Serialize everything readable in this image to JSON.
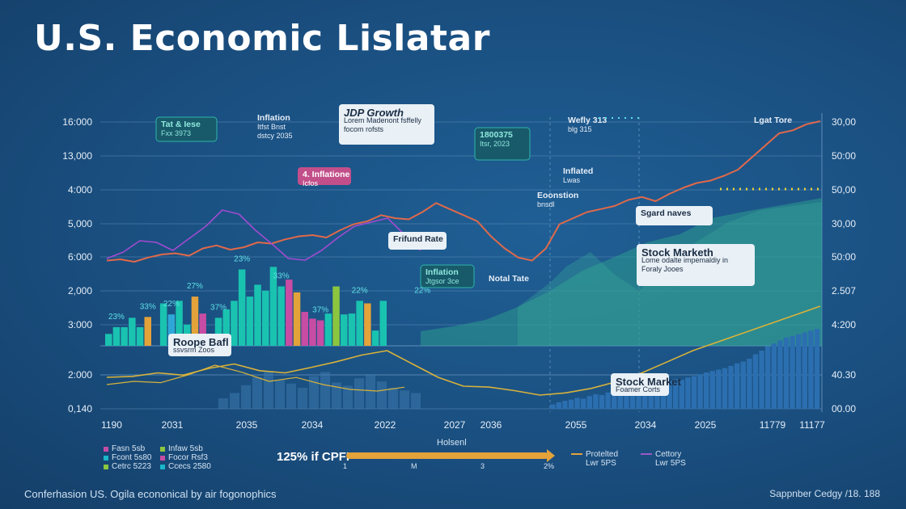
{
  "title": "U.S. Economic Lislatar",
  "footer": {
    "left": "Conferhasion US. Ogila econonical by air fogonophics",
    "right": "Sappnber Cedgy /18. 188"
  },
  "slider": {
    "header": "Holsenl",
    "label": "125% if CPFI",
    "ticks": [
      "1",
      "M",
      "3",
      "2%"
    ]
  },
  "legend": {
    "col1": [
      {
        "label": "Fasn 5sb",
        "color": "#c74ca3"
      },
      {
        "label": "Fcont 5s80",
        "color": "#19b7c9"
      },
      {
        "label": "Cetrc 5223",
        "color": "#8cc63f"
      }
    ],
    "col2": [
      {
        "label": "Infaw 5sb",
        "color": "#8cc63f"
      },
      {
        "label": "Focor Rsf3",
        "color": "#c74ca3"
      },
      {
        "label": "Ccecs 2580",
        "color": "#19b7c9"
      }
    ],
    "lines": [
      {
        "label": "Protelted",
        "sub": "Lwr 5PS",
        "color": "#e3a23a"
      },
      {
        "label": "Cettory",
        "sub": "Lwr 5PS",
        "color": "#9b59c9"
      }
    ]
  },
  "colors": {
    "teal": "#19c3b0",
    "cyan": "#2ea7d8",
    "orange": "#e3a23a",
    "magenta": "#c74ca3",
    "green": "#8cc63f",
    "line_red": "#e0694a",
    "line_yellow": "#d8b23a",
    "line_purple": "#a14bd0",
    "area": "#2c9a8e",
    "dark_bar": "#2b6fb0"
  },
  "chart_data": {
    "type": "bar",
    "y_left_ticks": [
      "16:000",
      "13,000",
      "4:000",
      "5,000",
      "6:000",
      "2,000",
      "3:000",
      "2:000",
      "0,140"
    ],
    "y_right_ticks": [
      "30,00",
      "50:00",
      "50,00",
      "30,00",
      "50:00",
      "2.507",
      "4:200",
      "40.30",
      "00.00"
    ],
    "x_ticks": [
      "1190",
      "2031",
      "2035",
      "2034",
      "2022",
      "2027",
      "2036",
      "2055",
      "2034",
      "2025",
      "11779",
      "11177"
    ],
    "bars_upper": [
      {
        "v": 14,
        "c": "teal"
      },
      {
        "v": 22,
        "c": "teal"
      },
      {
        "v": 22,
        "c": "teal"
      },
      {
        "v": 33,
        "c": "teal"
      },
      {
        "v": 22,
        "c": "teal"
      },
      {
        "v": 34,
        "c": "orange"
      },
      {
        "v": 0,
        "c": "teal"
      },
      {
        "v": 50,
        "c": "teal"
      },
      {
        "v": 37,
        "c": "cyan"
      },
      {
        "v": 53,
        "c": "teal"
      },
      {
        "v": 25,
        "c": "teal"
      },
      {
        "v": 58,
        "c": "orange"
      },
      {
        "v": 38,
        "c": "magenta"
      },
      {
        "v": 0,
        "c": "teal"
      },
      {
        "v": 33,
        "c": "teal"
      },
      {
        "v": 43,
        "c": "teal"
      },
      {
        "v": 53,
        "c": "teal"
      },
      {
        "v": 90,
        "c": "teal"
      },
      {
        "v": 58,
        "c": "teal"
      },
      {
        "v": 72,
        "c": "teal"
      },
      {
        "v": 65,
        "c": "teal"
      },
      {
        "v": 93,
        "c": "teal"
      },
      {
        "v": 70,
        "c": "teal"
      },
      {
        "v": 78,
        "c": "magenta"
      },
      {
        "v": 63,
        "c": "orange"
      },
      {
        "v": 40,
        "c": "magenta"
      },
      {
        "v": 32,
        "c": "magenta"
      },
      {
        "v": 30,
        "c": "magenta"
      },
      {
        "v": 38,
        "c": "teal"
      },
      {
        "v": 70,
        "c": "green"
      },
      {
        "v": 37,
        "c": "teal"
      },
      {
        "v": 38,
        "c": "teal"
      },
      {
        "v": 53,
        "c": "teal"
      },
      {
        "v": 50,
        "c": "orange"
      },
      {
        "v": 18,
        "c": "teal"
      },
      {
        "v": 53,
        "c": "teal"
      }
    ],
    "bar_labels": [
      {
        "text": "23%",
        "bar": 1
      },
      {
        "text": "33%",
        "bar": 5
      },
      {
        "text": "22%",
        "bar": 8
      },
      {
        "text": "27%",
        "bar": 11
      },
      {
        "text": "37%",
        "bar": 14
      },
      {
        "text": "23%",
        "bar": 17
      },
      {
        "text": "33%",
        "bar": 22
      },
      {
        "text": "37%",
        "bar": 27
      },
      {
        "text": "22%",
        "bar": 32
      },
      {
        "text": "22%",
        "bar": 40
      }
    ],
    "bars_lower_right": [
      12,
      18,
      22,
      25,
      30,
      28,
      35,
      40,
      38,
      45,
      48,
      52,
      55,
      60,
      58,
      62,
      66,
      70,
      74,
      78,
      82,
      80,
      86,
      90,
      95,
      100,
      104,
      108,
      112,
      118,
      125,
      130,
      138,
      150,
      160,
      172,
      180,
      188,
      196,
      200,
      205,
      210,
      215,
      220
    ],
    "bars_lower_left": [
      20,
      30,
      45,
      60,
      72,
      55,
      48,
      40,
      62,
      70,
      50,
      44,
      58,
      66,
      52,
      40,
      35,
      30
    ],
    "line_red": [
      130,
      132,
      128,
      135,
      140,
      142,
      138,
      150,
      155,
      148,
      152,
      160,
      158,
      165,
      170,
      172,
      168,
      180,
      190,
      195,
      205,
      200,
      198,
      210,
      225,
      215,
      205,
      195,
      170,
      150,
      135,
      130,
      150,
      190,
      200,
      210,
      215,
      220,
      230,
      235,
      228,
      240,
      250,
      258,
      262,
      270,
      280,
      300,
      320,
      340,
      345,
      355,
      360
    ],
    "line_yellow": [
      60,
      62,
      70,
      65,
      80,
      90,
      75,
      70,
      82,
      95,
      110,
      120,
      90,
      60,
      40,
      38,
      30,
      20,
      25,
      35,
      50,
      70,
      95,
      120,
      140,
      160,
      180,
      200,
      220
    ],
    "line_purple": [
      70,
      78,
      92,
      90,
      80,
      95,
      110,
      130,
      125,
      105,
      88,
      70,
      68,
      80,
      96,
      110,
      115,
      120,
      100,
      80
    ],
    "annotations": [
      {
        "lines": [
          "Tat & Iese",
          "Fxx 3973"
        ],
        "style": "dark"
      },
      {
        "lines": [
          "Inflation",
          "Itfst Bnst",
          "dstcy 2035"
        ],
        "style": "plain"
      },
      {
        "lines": [
          "JDP Growth",
          "Lorem Madenont fsffelly",
          "focom rofsts"
        ],
        "style": "light"
      },
      {
        "lines": [
          "1800375",
          "Itsr, 2023"
        ],
        "style": "dark"
      },
      {
        "lines": [
          "4. Inflatione",
          "Icfos"
        ],
        "style": "pink"
      },
      {
        "lines": [
          "Inflated",
          "Lwas"
        ],
        "style": "plain"
      },
      {
        "lines": [
          "Eoonstion",
          "bnsdl"
        ],
        "style": "plain"
      },
      {
        "lines": [
          "Sgard naves"
        ],
        "style": "light"
      },
      {
        "lines": [
          "Frifund Rate"
        ],
        "style": "light"
      },
      {
        "lines": [
          "Inflation",
          "Jtgsor 3ce"
        ],
        "style": "dark"
      },
      {
        "lines": [
          "Notal Tate"
        ],
        "style": "plain"
      },
      {
        "lines": [
          "Stock Marketh",
          "Lome odalte impemaldiy in",
          "Foraly Jooes"
        ],
        "style": "light"
      },
      {
        "lines": [
          "Roope Bafl",
          "ssvsrm Zoos"
        ],
        "style": "light"
      },
      {
        "lines": [
          "Stock Market",
          "Foamer Corts"
        ],
        "style": "light"
      },
      {
        "lines": [
          "Lgat Tore"
        ],
        "style": "plain"
      },
      {
        "lines": [
          "Wefly 313",
          "blg 315"
        ],
        "style": "plain"
      }
    ]
  }
}
